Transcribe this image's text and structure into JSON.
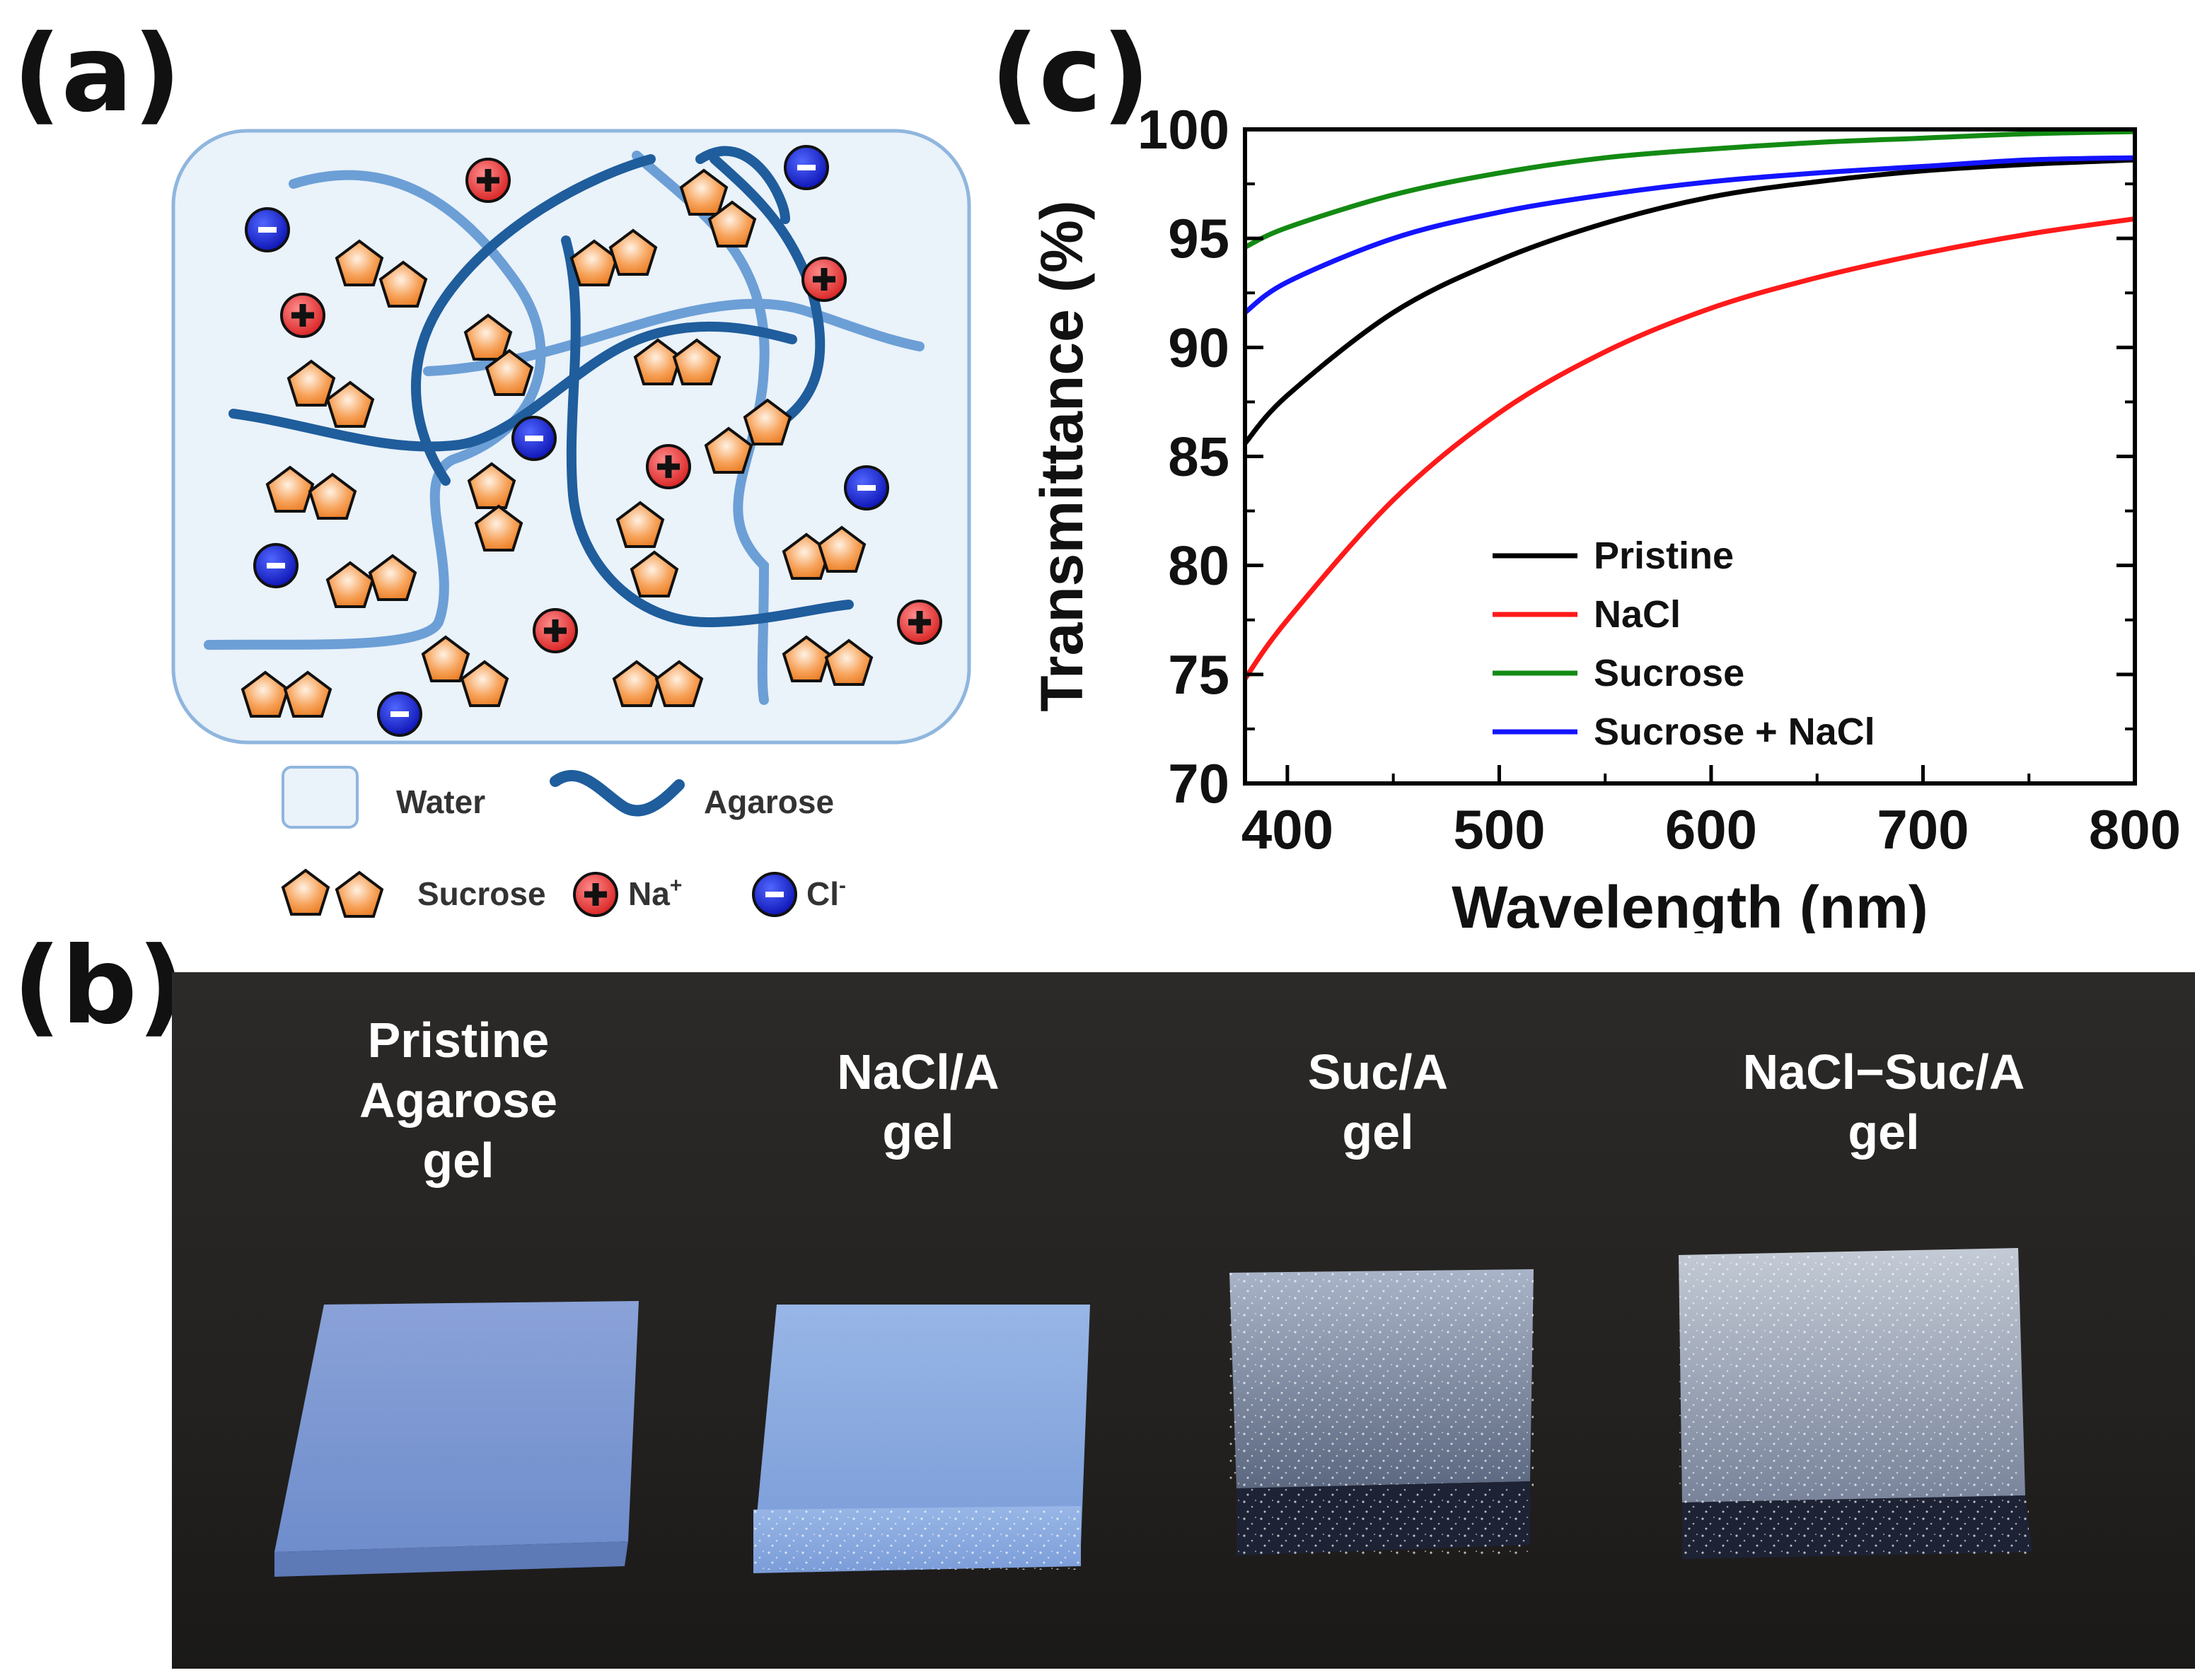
{
  "panels": {
    "a": "(a)",
    "b": "(b)",
    "c": "(c)"
  },
  "schematic": {
    "legend": {
      "water": "Water",
      "agarose": "Agarose",
      "sucrose": "Sucrose",
      "na_base": "Na",
      "na_sup": "+",
      "cl_base": "Cl",
      "cl_sup": "-"
    },
    "colors": {
      "water_fill": "#eaf2fa",
      "agarose_dark": "#1f5d9c",
      "agarose_light": "#6c9fd6",
      "sucrose": "#f58a2a",
      "na": "#e53a3a",
      "cl": "#1020c8"
    }
  },
  "photo": {
    "labels": [
      {
        "line1": "Pristine",
        "line2": "Agarose",
        "line3": "gel"
      },
      {
        "line1": "NaCl/A",
        "line2": "gel"
      },
      {
        "line1": "Suc/A",
        "line2": "gel"
      },
      {
        "line1": "NaCl−Suc/A",
        "line2": "gel"
      }
    ]
  },
  "chart_data": {
    "type": "line",
    "title": "",
    "xlabel": "Wavelength (nm)",
    "ylabel": "Transmittance (%)",
    "xlim": [
      380,
      800
    ],
    "ylim": [
      70,
      100
    ],
    "xticks": [
      400,
      500,
      600,
      700,
      800
    ],
    "yticks": [
      70,
      75,
      80,
      85,
      90,
      95,
      100
    ],
    "legend_position": "lower-center",
    "x": [
      380,
      400,
      450,
      500,
      550,
      600,
      650,
      700,
      750,
      800
    ],
    "series": [
      {
        "name": "Pristine",
        "color": "#000000",
        "values": [
          85.6,
          87.8,
          91.6,
          94.0,
          95.7,
          96.9,
          97.6,
          98.1,
          98.4,
          98.6
        ]
      },
      {
        "name": "NaCl",
        "color": "#ff1a1a",
        "values": [
          74.8,
          77.5,
          83.0,
          87.0,
          89.8,
          91.8,
          93.2,
          94.3,
          95.2,
          95.9
        ]
      },
      {
        "name": "Sucrose",
        "color": "#138a13",
        "values": [
          94.6,
          95.5,
          97.0,
          98.0,
          98.7,
          99.1,
          99.4,
          99.6,
          99.8,
          99.9
        ]
      },
      {
        "name": "Sucrose + NaCl",
        "color": "#1414ff",
        "values": [
          91.6,
          93.0,
          95.0,
          96.2,
          97.0,
          97.6,
          98.0,
          98.3,
          98.6,
          98.7
        ]
      }
    ]
  }
}
